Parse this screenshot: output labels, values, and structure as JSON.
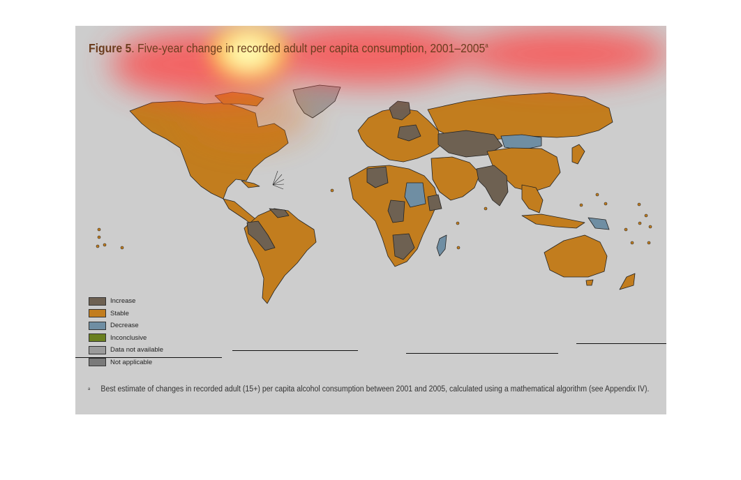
{
  "figure": {
    "label": "Figure 5",
    "title_rest": ". Five-year change in recorded adult per capita consumption, 2001–2005",
    "title_sup": "a"
  },
  "legend": {
    "items": [
      {
        "label": "Increase",
        "color": "#6e6152"
      },
      {
        "label": "Stable",
        "color": "#c27d1e"
      },
      {
        "label": "Decrease",
        "color": "#6f8ea3"
      },
      {
        "label": "Inconclusive",
        "color": "#6a7f1f"
      },
      {
        "label": "Data not available",
        "color": "#9b9b9b"
      },
      {
        "label": "Not applicable",
        "color": "#7a7a7a"
      }
    ]
  },
  "footnote": {
    "mark": "a",
    "text": "Best estimate of changes in recorded adult (15+) per capita alcohol consumption between 2001 and 2005, calculated using a mathematical algorithm (see Appendix IV)."
  },
  "colors": {
    "panel": "#cdcdcd",
    "stable": "#c27d1e",
    "increase": "#6e6152",
    "decrease": "#6f8ea3",
    "not_available": "#9b9b9b",
    "heat_hot": "#fff27a",
    "heat_warm": "#ff3b3b"
  }
}
